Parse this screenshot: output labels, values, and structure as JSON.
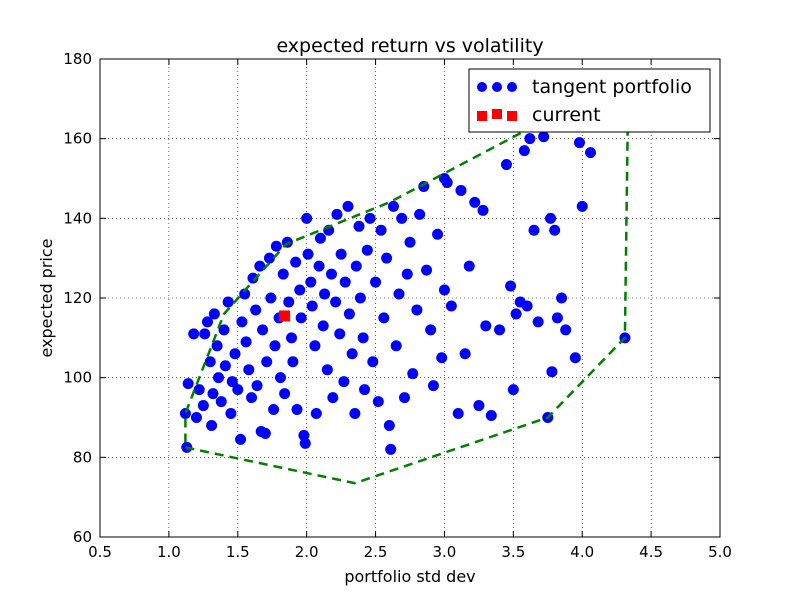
{
  "chart_data": {
    "type": "scatter",
    "title": "expected return vs volatility",
    "xlabel": "portfolio std dev",
    "ylabel": "expected price",
    "xlim": [
      0.5,
      5.0
    ],
    "ylim": [
      60,
      180
    ],
    "xticks": [
      "0.5",
      "1.0",
      "1.5",
      "2.0",
      "2.5",
      "3.0",
      "3.5",
      "4.0",
      "4.5",
      "5.0"
    ],
    "yticks": [
      "60",
      "80",
      "100",
      "120",
      "140",
      "160",
      "180"
    ],
    "grid": true,
    "legend": {
      "position": "top-right",
      "entries": [
        "tangent portfolio",
        "current"
      ]
    },
    "series": [
      {
        "name": "tangent portfolio",
        "marker": "circle",
        "color": "#0000ff",
        "points": [
          [
            1.12,
            91
          ],
          [
            1.13,
            82.5
          ],
          [
            1.14,
            98.5
          ],
          [
            1.18,
            111
          ],
          [
            1.2,
            90
          ],
          [
            1.22,
            97
          ],
          [
            1.25,
            93
          ],
          [
            1.26,
            111
          ],
          [
            1.28,
            114
          ],
          [
            1.3,
            104
          ],
          [
            1.31,
            88
          ],
          [
            1.32,
            96
          ],
          [
            1.33,
            116
          ],
          [
            1.35,
            108
          ],
          [
            1.36,
            100
          ],
          [
            1.38,
            94
          ],
          [
            1.4,
            112
          ],
          [
            1.41,
            103
          ],
          [
            1.43,
            119
          ],
          [
            1.45,
            91
          ],
          [
            1.46,
            99
          ],
          [
            1.48,
            106
          ],
          [
            1.5,
            97
          ],
          [
            1.52,
            84.5
          ],
          [
            1.53,
            114
          ],
          [
            1.55,
            121
          ],
          [
            1.56,
            109
          ],
          [
            1.58,
            102
          ],
          [
            1.6,
            95
          ],
          [
            1.61,
            125
          ],
          [
            1.63,
            117
          ],
          [
            1.64,
            98
          ],
          [
            1.66,
            128
          ],
          [
            1.67,
            86.5
          ],
          [
            1.68,
            112
          ],
          [
            1.7,
            86
          ],
          [
            1.71,
            104
          ],
          [
            1.73,
            130
          ],
          [
            1.74,
            120
          ],
          [
            1.76,
            92
          ],
          [
            1.77,
            108
          ],
          [
            1.78,
            133
          ],
          [
            1.8,
            115
          ],
          [
            1.81,
            100
          ],
          [
            1.83,
            126
          ],
          [
            1.84,
            96
          ],
          [
            1.86,
            134
          ],
          [
            1.87,
            119
          ],
          [
            1.89,
            110
          ],
          [
            1.9,
            104
          ],
          [
            1.92,
            129
          ],
          [
            1.93,
            92
          ],
          [
            1.95,
            122
          ],
          [
            1.96,
            115
          ],
          [
            1.98,
            85.5
          ],
          [
            1.99,
            83.5
          ],
          [
            2.0,
            140
          ],
          [
            2.01,
            131
          ],
          [
            2.03,
            124
          ],
          [
            2.04,
            118
          ],
          [
            2.06,
            108
          ],
          [
            2.07,
            91
          ],
          [
            2.09,
            128
          ],
          [
            2.1,
            135
          ],
          [
            2.12,
            113
          ],
          [
            2.13,
            121
          ],
          [
            2.15,
            102
          ],
          [
            2.16,
            137
          ],
          [
            2.18,
            126
          ],
          [
            2.19,
            95
          ],
          [
            2.21,
            119
          ],
          [
            2.22,
            141
          ],
          [
            2.24,
            111
          ],
          [
            2.25,
            131
          ],
          [
            2.27,
            99
          ],
          [
            2.28,
            124
          ],
          [
            2.3,
            143
          ],
          [
            2.31,
            116
          ],
          [
            2.33,
            106
          ],
          [
            2.35,
            91
          ],
          [
            2.36,
            128
          ],
          [
            2.38,
            138
          ],
          [
            2.39,
            120
          ],
          [
            2.41,
            110
          ],
          [
            2.42,
            97
          ],
          [
            2.44,
            132
          ],
          [
            2.46,
            140
          ],
          [
            2.48,
            104
          ],
          [
            2.5,
            124
          ],
          [
            2.52,
            94
          ],
          [
            2.54,
            137
          ],
          [
            2.56,
            115
          ],
          [
            2.58,
            130
          ],
          [
            2.6,
            88
          ],
          [
            2.61,
            82
          ],
          [
            2.63,
            143
          ],
          [
            2.65,
            108
          ],
          [
            2.67,
            121
          ],
          [
            2.69,
            140
          ],
          [
            2.71,
            95
          ],
          [
            2.73,
            126
          ],
          [
            2.75,
            134
          ],
          [
            2.77,
            101
          ],
          [
            2.8,
            117
          ],
          [
            2.82,
            141
          ],
          [
            2.85,
            148
          ],
          [
            2.87,
            127
          ],
          [
            2.9,
            112
          ],
          [
            2.92,
            98
          ],
          [
            2.95,
            136
          ],
          [
            2.98,
            105
          ],
          [
            3.0,
            150
          ],
          [
            3.0,
            122
          ],
          [
            3.02,
            149
          ],
          [
            3.05,
            118
          ],
          [
            3.1,
            91
          ],
          [
            3.12,
            147
          ],
          [
            3.15,
            106
          ],
          [
            3.18,
            128
          ],
          [
            3.22,
            144
          ],
          [
            3.25,
            93
          ],
          [
            3.28,
            142
          ],
          [
            3.3,
            113
          ],
          [
            3.34,
            90.5
          ],
          [
            3.4,
            112
          ],
          [
            3.45,
            153.5
          ],
          [
            3.48,
            123
          ],
          [
            3.5,
            97
          ],
          [
            3.52,
            116
          ],
          [
            3.55,
            119
          ],
          [
            3.58,
            157
          ],
          [
            3.6,
            118
          ],
          [
            3.62,
            160
          ],
          [
            3.65,
            137
          ],
          [
            3.68,
            114
          ],
          [
            3.72,
            160.5
          ],
          [
            3.75,
            90
          ],
          [
            3.77,
            140
          ],
          [
            3.78,
            101.5
          ],
          [
            3.8,
            137
          ],
          [
            3.82,
            115
          ],
          [
            3.85,
            120
          ],
          [
            3.88,
            112
          ],
          [
            3.95,
            105
          ],
          [
            3.98,
            159
          ],
          [
            4.0,
            143
          ],
          [
            4.06,
            156.5
          ],
          [
            4.31,
            110
          ],
          [
            4.33,
            163
          ]
        ]
      },
      {
        "name": "current",
        "marker": "square",
        "color": "#ff0000",
        "points": [
          [
            1.84,
            115.5
          ]
        ]
      }
    ],
    "hull": {
      "style": "dashed",
      "color": "#008000",
      "points": [
        [
          1.12,
          82.5
        ],
        [
          2.35,
          73.5
        ],
        [
          3.75,
          90
        ],
        [
          4.31,
          110
        ],
        [
          4.33,
          163
        ],
        [
          3.75,
          165
        ],
        [
          2.6,
          144
        ],
        [
          1.85,
          133.5
        ],
        [
          1.4,
          116
        ],
        [
          1.12,
          91
        ],
        [
          1.12,
          82.5
        ]
      ]
    }
  }
}
